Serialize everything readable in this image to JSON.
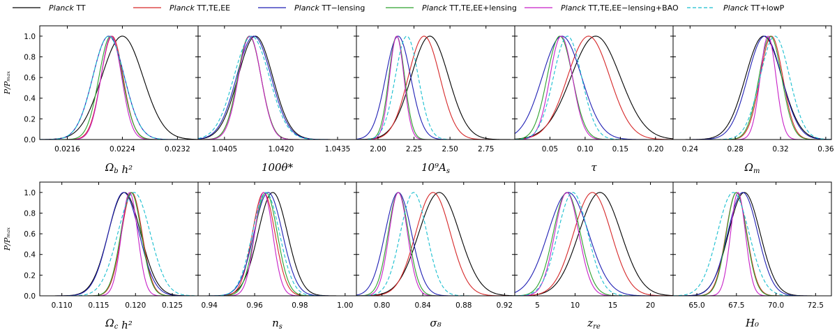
{
  "figure": {
    "ylabel": "P/Pₘₐₓ",
    "legend": [
      {
        "italic": "Planck",
        "rest": " TT",
        "color": "#000000",
        "dash": false
      },
      {
        "italic": "Planck",
        "rest": " TT,TE,EE",
        "color": "#d62728",
        "dash": false
      },
      {
        "italic": "Planck",
        "rest": " TT−lensing",
        "color": "#1f1fb4",
        "dash": false
      },
      {
        "italic": "Planck",
        "rest": " TT,TE,EE+lensing",
        "color": "#2ca02c",
        "dash": false
      },
      {
        "italic": "Planck",
        "rest": " TT,TE,EE−lensing+BAO",
        "color": "#c71fc7",
        "dash": false
      },
      {
        "italic": "Planck",
        "rest": " TT+lowP",
        "color": "#17becf",
        "dash": true
      }
    ]
  },
  "chart_data": [
    {
      "type": "line",
      "xlabel": "Ω_b h²",
      "xlim": [
        0.0212,
        0.0235
      ],
      "ylim": [
        0,
        1.1
      ],
      "xticks": [
        0.0216,
        0.0224,
        0.0232
      ],
      "xtick_labels": [
        "0.0216",
        "0.0224",
        "0.0232"
      ],
      "yticks": [
        0.0,
        0.2,
        0.4,
        0.6,
        0.8,
        1.0
      ],
      "ytick_labels": [
        "0.0",
        "0.2",
        "0.4",
        "0.6",
        "0.8",
        "1.0"
      ],
      "series": [
        {
          "name": "Planck TT",
          "mean": 0.0224,
          "sigma": 0.0003
        },
        {
          "name": "Planck TT,TE,EE",
          "mean": 0.02225,
          "sigma": 0.00016
        },
        {
          "name": "Planck TT−lensing",
          "mean": 0.0222,
          "sigma": 0.00023
        },
        {
          "name": "Planck TT,TE,EE+lensing",
          "mean": 0.02223,
          "sigma": 0.00017
        },
        {
          "name": "Planck TT,TE,EE−lensing+BAO",
          "mean": 0.02224,
          "sigma": 0.00015
        },
        {
          "name": "Planck TT+lowP",
          "mean": 0.0222,
          "sigma": 0.00023
        }
      ]
    },
    {
      "type": "line",
      "xlabel": "100θ*",
      "xlim": [
        1.0398,
        1.044
      ],
      "ylim": [
        0,
        1.1
      ],
      "xticks": [
        1.0405,
        1.042,
        1.0435
      ],
      "xtick_labels": [
        "1.0405",
        "1.0420",
        "1.0435"
      ],
      "yticks": [
        0.0,
        0.2,
        0.4,
        0.6,
        0.8,
        1.0
      ],
      "ytick_labels": [
        "",
        "",
        "",
        "",
        "",
        ""
      ],
      "series": [
        {
          "name": "Planck TT",
          "mean": 1.04132,
          "sigma": 0.00046
        },
        {
          "name": "Planck TT,TE,EE",
          "mean": 1.04116,
          "sigma": 0.00031
        },
        {
          "name": "Planck TT−lensing",
          "mean": 1.04128,
          "sigma": 0.00046
        },
        {
          "name": "Planck TT,TE,EE+lensing",
          "mean": 1.04116,
          "sigma": 0.00031
        },
        {
          "name": "Planck TT,TE,EE−lensing+BAO",
          "mean": 1.04117,
          "sigma": 0.0003
        },
        {
          "name": "Planck TT+lowP",
          "mean": 1.04122,
          "sigma": 0.00047
        }
      ]
    },
    {
      "type": "line",
      "xlabel": "10⁹A_s",
      "xlim": [
        1.85,
        2.95
      ],
      "ylim": [
        0,
        1.1
      ],
      "xticks": [
        2.0,
        2.25,
        2.5,
        2.75
      ],
      "xtick_labels": [
        "2.00",
        "2.25",
        "2.50",
        "2.75"
      ],
      "yticks": [
        0.0,
        0.2,
        0.4,
        0.6,
        0.8,
        1.0
      ],
      "ytick_labels": [
        "",
        "",
        "",
        "",
        "",
        ""
      ],
      "series": [
        {
          "name": "Planck TT",
          "mean": 2.36,
          "sigma": 0.13
        },
        {
          "name": "Planck TT,TE,EE",
          "mean": 2.32,
          "sigma": 0.11
        },
        {
          "name": "Planck TT−lensing",
          "mean": 2.14,
          "sigma": 0.087
        },
        {
          "name": "Planck TT,TE,EE+lensing",
          "mean": 2.13,
          "sigma": 0.055
        },
        {
          "name": "Planck TT,TE,EE−lensing+BAO",
          "mean": 2.13,
          "sigma": 0.05
        },
        {
          "name": "Planck TT+lowP",
          "mean": 2.2,
          "sigma": 0.08
        }
      ]
    },
    {
      "type": "line",
      "xlabel": "τ",
      "xlim": [
        0.0,
        0.225
      ],
      "ylim": [
        0,
        1.1
      ],
      "xticks": [
        0.05,
        0.1,
        0.15,
        0.2
      ],
      "xtick_labels": [
        "0.05",
        "0.10",
        "0.15",
        "0.20"
      ],
      "yticks": [
        0.0,
        0.2,
        0.4,
        0.6,
        0.8,
        1.0
      ],
      "ytick_labels": [
        "",
        "",
        "",
        "",
        "",
        ""
      ],
      "series": [
        {
          "name": "Planck TT",
          "mean": 0.115,
          "sigma": 0.035
        },
        {
          "name": "Planck TT,TE,EE",
          "mean": 0.105,
          "sigma": 0.03
        },
        {
          "name": "Planck TT−lensing",
          "mean": 0.067,
          "sigma": 0.028
        },
        {
          "name": "Planck TT,TE,EE+lensing",
          "mean": 0.064,
          "sigma": 0.018
        },
        {
          "name": "Planck TT,TE,EE−lensing+BAO",
          "mean": 0.066,
          "sigma": 0.016
        },
        {
          "name": "Planck TT+lowP",
          "mean": 0.075,
          "sigma": 0.02
        }
      ]
    },
    {
      "type": "line",
      "xlabel": "Ω_m",
      "xlim": [
        0.225,
        0.365
      ],
      "ylim": [
        0,
        1.1
      ],
      "xticks": [
        0.24,
        0.28,
        0.32,
        0.36
      ],
      "xtick_labels": [
        "0.24",
        "0.28",
        "0.32",
        "0.36"
      ],
      "yticks": [
        0.0,
        0.2,
        0.4,
        0.6,
        0.8,
        1.0
      ],
      "ytick_labels": [
        "",
        "",
        "",
        "",
        "",
        ""
      ],
      "series": [
        {
          "name": "Planck TT",
          "mean": 0.305,
          "sigma": 0.016
        },
        {
          "name": "Planck TT,TE,EE",
          "mean": 0.312,
          "sigma": 0.01
        },
        {
          "name": "Planck TT−lensing",
          "mean": 0.306,
          "sigma": 0.015
        },
        {
          "name": "Planck TT,TE,EE+lensing",
          "mean": 0.311,
          "sigma": 0.01
        },
        {
          "name": "Planck TT,TE,EE−lensing+BAO",
          "mean": 0.309,
          "sigma": 0.007
        },
        {
          "name": "Planck TT+lowP",
          "mean": 0.315,
          "sigma": 0.013
        }
      ]
    },
    {
      "type": "line",
      "xlabel": "Ω_c h²",
      "xlim": [
        0.107,
        0.1285
      ],
      "ylim": [
        0,
        1.1
      ],
      "xticks": [
        0.11,
        0.115,
        0.12,
        0.125
      ],
      "xtick_labels": [
        "0.110",
        "0.115",
        "0.120",
        "0.125"
      ],
      "yticks": [
        0.0,
        0.2,
        0.4,
        0.6,
        0.8,
        1.0
      ],
      "ytick_labels": [
        "0.0",
        "0.2",
        "0.4",
        "0.6",
        "0.8",
        "1.0"
      ],
      "series": [
        {
          "name": "Planck TT",
          "mean": 0.1185,
          "sigma": 0.0022
        },
        {
          "name": "Planck TT,TE,EE",
          "mean": 0.1195,
          "sigma": 0.0014
        },
        {
          "name": "Planck TT−lensing",
          "mean": 0.1184,
          "sigma": 0.0021
        },
        {
          "name": "Planck TT,TE,EE+lensing",
          "mean": 0.1194,
          "sigma": 0.0014
        },
        {
          "name": "Planck TT,TE,EE−lensing+BAO",
          "mean": 0.1192,
          "sigma": 0.0011
        },
        {
          "name": "Planck TT+lowP",
          "mean": 0.1198,
          "sigma": 0.0022
        }
      ]
    },
    {
      "type": "line",
      "xlabel": "n_s",
      "xlim": [
        0.935,
        1.005
      ],
      "ylim": [
        0,
        1.1
      ],
      "xticks": [
        0.94,
        0.96,
        0.98,
        1.0
      ],
      "xtick_labels": [
        "0.94",
        "0.96",
        "0.98",
        "1.00"
      ],
      "yticks": [
        0.0,
        0.2,
        0.4,
        0.6,
        0.8,
        1.0
      ],
      "ytick_labels": [
        "",
        "",
        "",
        "",
        "",
        ""
      ],
      "series": [
        {
          "name": "Planck TT",
          "mean": 0.968,
          "sigma": 0.0065
        },
        {
          "name": "Planck TT,TE,EE",
          "mean": 0.964,
          "sigma": 0.005
        },
        {
          "name": "Planck TT−lensing",
          "mean": 0.966,
          "sigma": 0.0063
        },
        {
          "name": "Planck TT,TE,EE+lensing",
          "mean": 0.965,
          "sigma": 0.005
        },
        {
          "name": "Planck TT,TE,EE−lensing+BAO",
          "mean": 0.964,
          "sigma": 0.004
        },
        {
          "name": "Planck TT+lowP",
          "mean": 0.965,
          "sigma": 0.006
        }
      ]
    },
    {
      "type": "line",
      "xlabel": "σ₈",
      "xlim": [
        0.775,
        0.93
      ],
      "ylim": [
        0,
        1.1
      ],
      "xticks": [
        0.8,
        0.84,
        0.88,
        0.92
      ],
      "xtick_labels": [
        "0.80",
        "0.84",
        "0.88",
        "0.92"
      ],
      "yticks": [
        0.0,
        0.2,
        0.4,
        0.6,
        0.8,
        1.0
      ],
      "ytick_labels": [
        "",
        "",
        "",
        "",
        "",
        ""
      ],
      "series": [
        {
          "name": "Planck TT",
          "mean": 0.856,
          "sigma": 0.02
        },
        {
          "name": "Planck TT,TE,EE",
          "mean": 0.85,
          "sigma": 0.017
        },
        {
          "name": "Planck TT−lensing",
          "mean": 0.816,
          "sigma": 0.013
        },
        {
          "name": "Planck TT,TE,EE+lensing",
          "mean": 0.816,
          "sigma": 0.01
        },
        {
          "name": "Planck TT,TE,EE−lensing+BAO",
          "mean": 0.816,
          "sigma": 0.009
        },
        {
          "name": "Planck TT+lowP",
          "mean": 0.831,
          "sigma": 0.013
        }
      ]
    },
    {
      "type": "line",
      "xlabel": "z_re",
      "xlim": [
        2,
        23
      ],
      "ylim": [
        0,
        1.1
      ],
      "xticks": [
        5,
        10,
        15,
        20
      ],
      "xtick_labels": [
        "5",
        "10",
        "15",
        "20"
      ],
      "yticks": [
        0.0,
        0.2,
        0.4,
        0.6,
        0.8,
        1.0
      ],
      "ytick_labels": [
        "",
        "",
        "",
        "",
        "",
        ""
      ],
      "series": [
        {
          "name": "Planck TT",
          "mean": 13.3,
          "sigma": 2.8
        },
        {
          "name": "Planck TT,TE,EE",
          "mean": 12.3,
          "sigma": 2.5
        },
        {
          "name": "Planck TT−lensing",
          "mean": 9.1,
          "sigma": 2.7
        },
        {
          "name": "Planck TT,TE,EE+lensing",
          "mean": 8.9,
          "sigma": 1.8
        },
        {
          "name": "Planck TT,TE,EE−lensing+BAO",
          "mean": 8.9,
          "sigma": 1.6
        },
        {
          "name": "Planck TT+lowP",
          "mean": 9.7,
          "sigma": 2.0
        }
      ]
    },
    {
      "type": "line",
      "xlabel": "H₀",
      "xlim": [
        63.5,
        73.5
      ],
      "ylim": [
        0,
        1.1
      ],
      "xticks": [
        65.0,
        67.5,
        70.0,
        72.5
      ],
      "xtick_labels": [
        "65.0",
        "67.5",
        "70.0",
        "72.5"
      ],
      "yticks": [
        0.0,
        0.2,
        0.4,
        0.6,
        0.8,
        1.0
      ],
      "ytick_labels": [
        "",
        "",
        "",
        "",
        "",
        ""
      ],
      "series": [
        {
          "name": "Planck TT",
          "mean": 68.0,
          "sigma": 1.0
        },
        {
          "name": "Planck TT,TE,EE",
          "mean": 67.5,
          "sigma": 0.66
        },
        {
          "name": "Planck TT−lensing",
          "mean": 67.9,
          "sigma": 0.95
        },
        {
          "name": "Planck TT,TE,EE+lensing",
          "mean": 67.5,
          "sigma": 0.64
        },
        {
          "name": "Planck TT,TE,EE−lensing+BAO",
          "mean": 67.6,
          "sigma": 0.47
        },
        {
          "name": "Planck TT+lowP",
          "mean": 67.3,
          "sigma": 1.0
        }
      ]
    }
  ]
}
